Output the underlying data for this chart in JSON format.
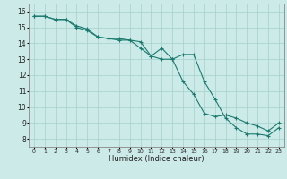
{
  "title": "",
  "xlabel": "Humidex (Indice chaleur)",
  "ylabel": "",
  "bg_color": "#cceae8",
  "grid_color": "#aad4d0",
  "line_color": "#1a7a6e",
  "xlim": [
    -0.5,
    23.5
  ],
  "ylim": [
    7.5,
    16.5
  ],
  "xticks": [
    0,
    1,
    2,
    3,
    4,
    5,
    6,
    7,
    8,
    9,
    10,
    11,
    12,
    13,
    14,
    15,
    16,
    17,
    18,
    19,
    20,
    21,
    22,
    23
  ],
  "yticks": [
    8,
    9,
    10,
    11,
    12,
    13,
    14,
    15,
    16
  ],
  "line1_x": [
    0,
    1,
    2,
    3,
    4,
    5,
    6,
    7,
    8,
    9,
    10,
    11,
    12,
    13,
    14,
    15,
    16,
    17,
    18,
    19,
    20,
    21,
    22,
    23
  ],
  "line1_y": [
    15.7,
    15.7,
    15.5,
    15.5,
    15.1,
    14.9,
    14.4,
    14.3,
    14.3,
    14.2,
    13.7,
    13.2,
    13.7,
    13.0,
    13.3,
    13.3,
    11.6,
    10.5,
    9.3,
    8.7,
    8.3,
    8.3,
    8.2,
    8.7
  ],
  "line2_x": [
    0,
    1,
    2,
    3,
    4,
    5,
    6,
    7,
    8,
    9,
    10,
    11,
    12,
    13,
    14,
    15,
    16,
    17,
    18,
    19,
    20,
    21,
    22,
    23
  ],
  "line2_y": [
    15.7,
    15.7,
    15.5,
    15.5,
    15.0,
    14.8,
    14.4,
    14.3,
    14.2,
    14.2,
    14.1,
    13.2,
    13.0,
    13.0,
    11.6,
    10.8,
    9.6,
    9.4,
    9.5,
    9.3,
    9.0,
    8.8,
    8.5,
    9.0
  ]
}
